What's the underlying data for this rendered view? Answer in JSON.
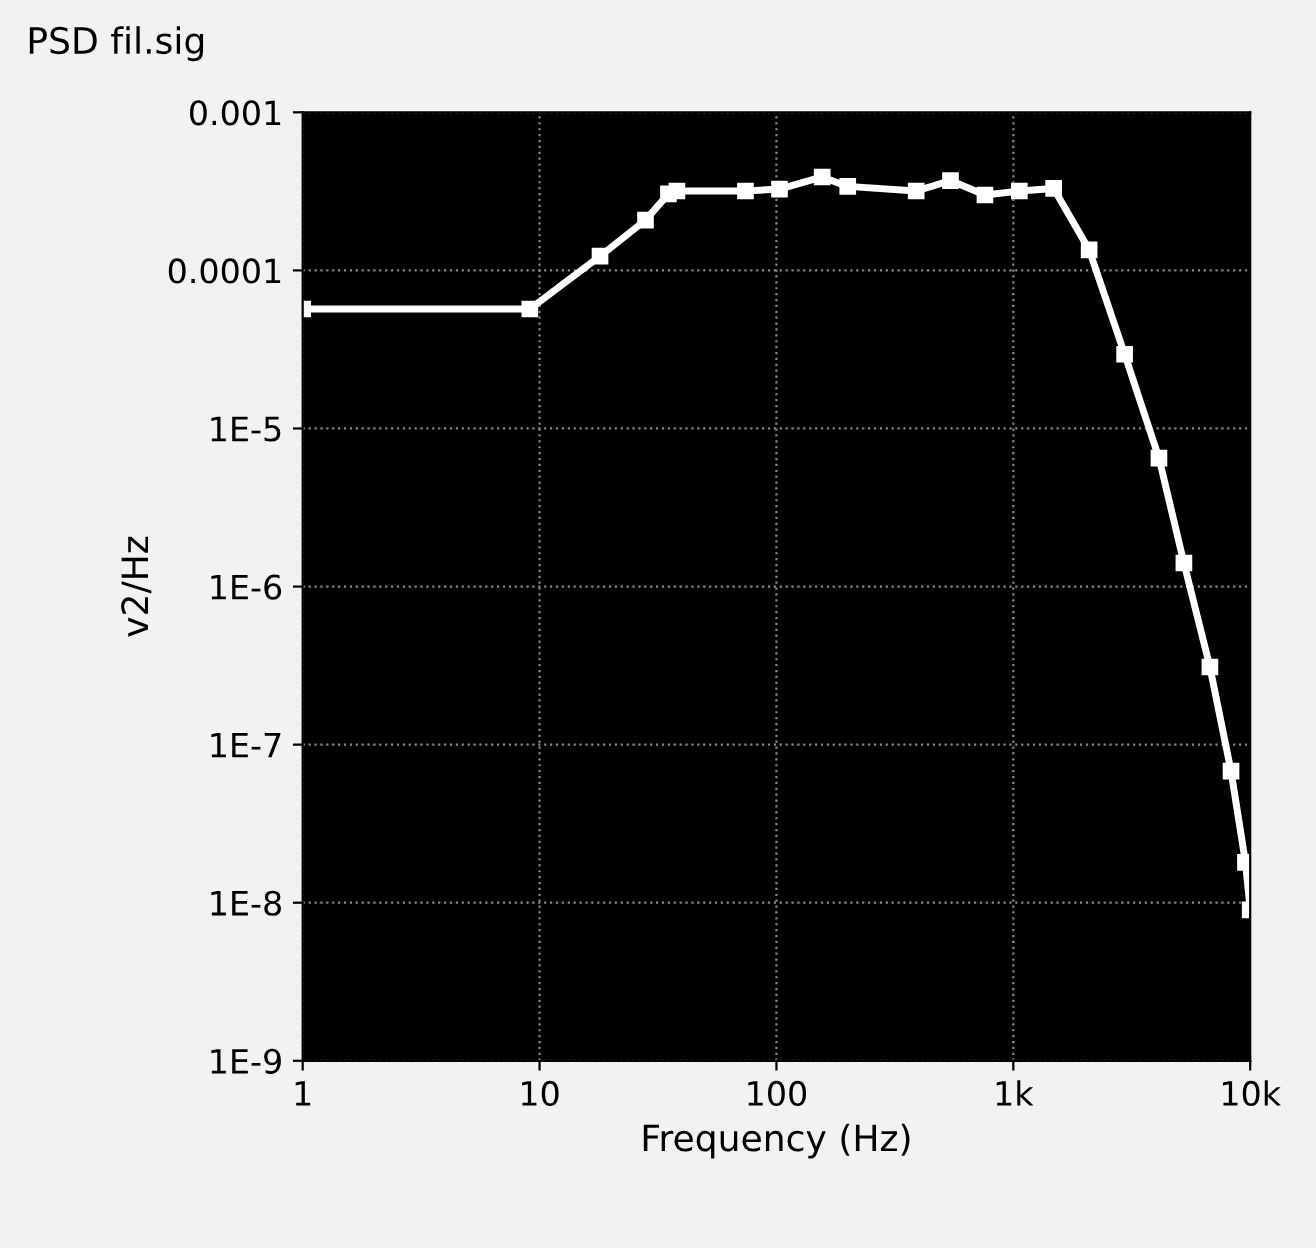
{
  "chart_data": {
    "type": "line",
    "title": "PSD fil.sig",
    "xlabel": "Frequency (Hz)",
    "ylabel": "v2/Hz",
    "log": "xy",
    "grid": true,
    "marker": "square",
    "line_style": "solid",
    "xlim": [
      1,
      10000
    ],
    "ylim": [
      1e-09,
      0.001
    ],
    "xticks": [
      1,
      10,
      100,
      {
        "value": 1000,
        "label": "1k"
      },
      {
        "value": 10000,
        "label": "10k"
      }
    ],
    "yticks": [
      {
        "value": 1e-09,
        "label": "1E-9"
      },
      {
        "value": 1e-08,
        "label": "1E-8"
      },
      {
        "value": 1e-07,
        "label": "1E-7"
      },
      {
        "value": 1e-06,
        "label": "1E-6"
      },
      {
        "value": 1e-05,
        "label": "1E-5"
      },
      {
        "value": 0.0001,
        "label": "0.0001"
      },
      {
        "value": 0.001,
        "label": "0.001"
      }
    ],
    "series": [
      {
        "color": "#ffffff",
        "x": [
          1,
          9.1,
          18,
          28,
          35,
          38,
          74,
          103,
          156,
          200,
          389,
          543,
          759,
          1060,
          1480,
          2090,
          2950,
          4120,
          5250,
          6760,
          8300,
          9550,
          10000
        ],
        "values": [
          5.7e-05,
          5.7e-05,
          0.000123,
          0.000208,
          0.000305,
          0.000318,
          0.000318,
          0.000327,
          0.00039,
          0.00034,
          0.000318,
          0.00037,
          0.0003,
          0.000318,
          0.00033,
          0.000135,
          2.95e-05,
          6.5e-06,
          1.41e-06,
          3.1e-07,
          6.8e-08,
          1.8e-08,
          9e-09
        ]
      }
    ]
  }
}
